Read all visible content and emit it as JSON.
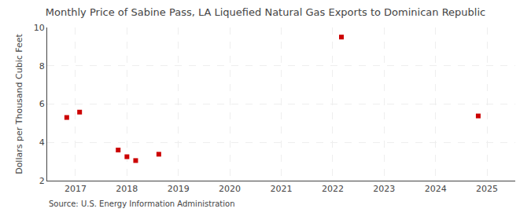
{
  "chart_data": {
    "type": "scatter",
    "title": "Monthly Price of Sabine Pass, LA Liquefied Natural Gas Exports to Dominican Republic",
    "ylabel": "Dollars per Thousand Cubic Feet",
    "source": "Source: U.S. Energy Information Administration",
    "x": [
      2016.83,
      2017.08,
      2017.83,
      2018.0,
      2018.17,
      2018.62,
      2022.17,
      2024.83
    ],
    "values": [
      5.3,
      5.58,
      3.6,
      3.25,
      3.05,
      3.38,
      9.5,
      5.38
    ],
    "color": "#cc0000",
    "marker": "square",
    "xlim": [
      2016.45,
      2025.55
    ],
    "xticks": [
      2017,
      2018,
      2019,
      2020,
      2021,
      2022,
      2023,
      2024,
      2025
    ],
    "ylim": [
      2,
      10
    ],
    "yticks": [
      2,
      4,
      6,
      8,
      10
    ],
    "grid": true
  }
}
